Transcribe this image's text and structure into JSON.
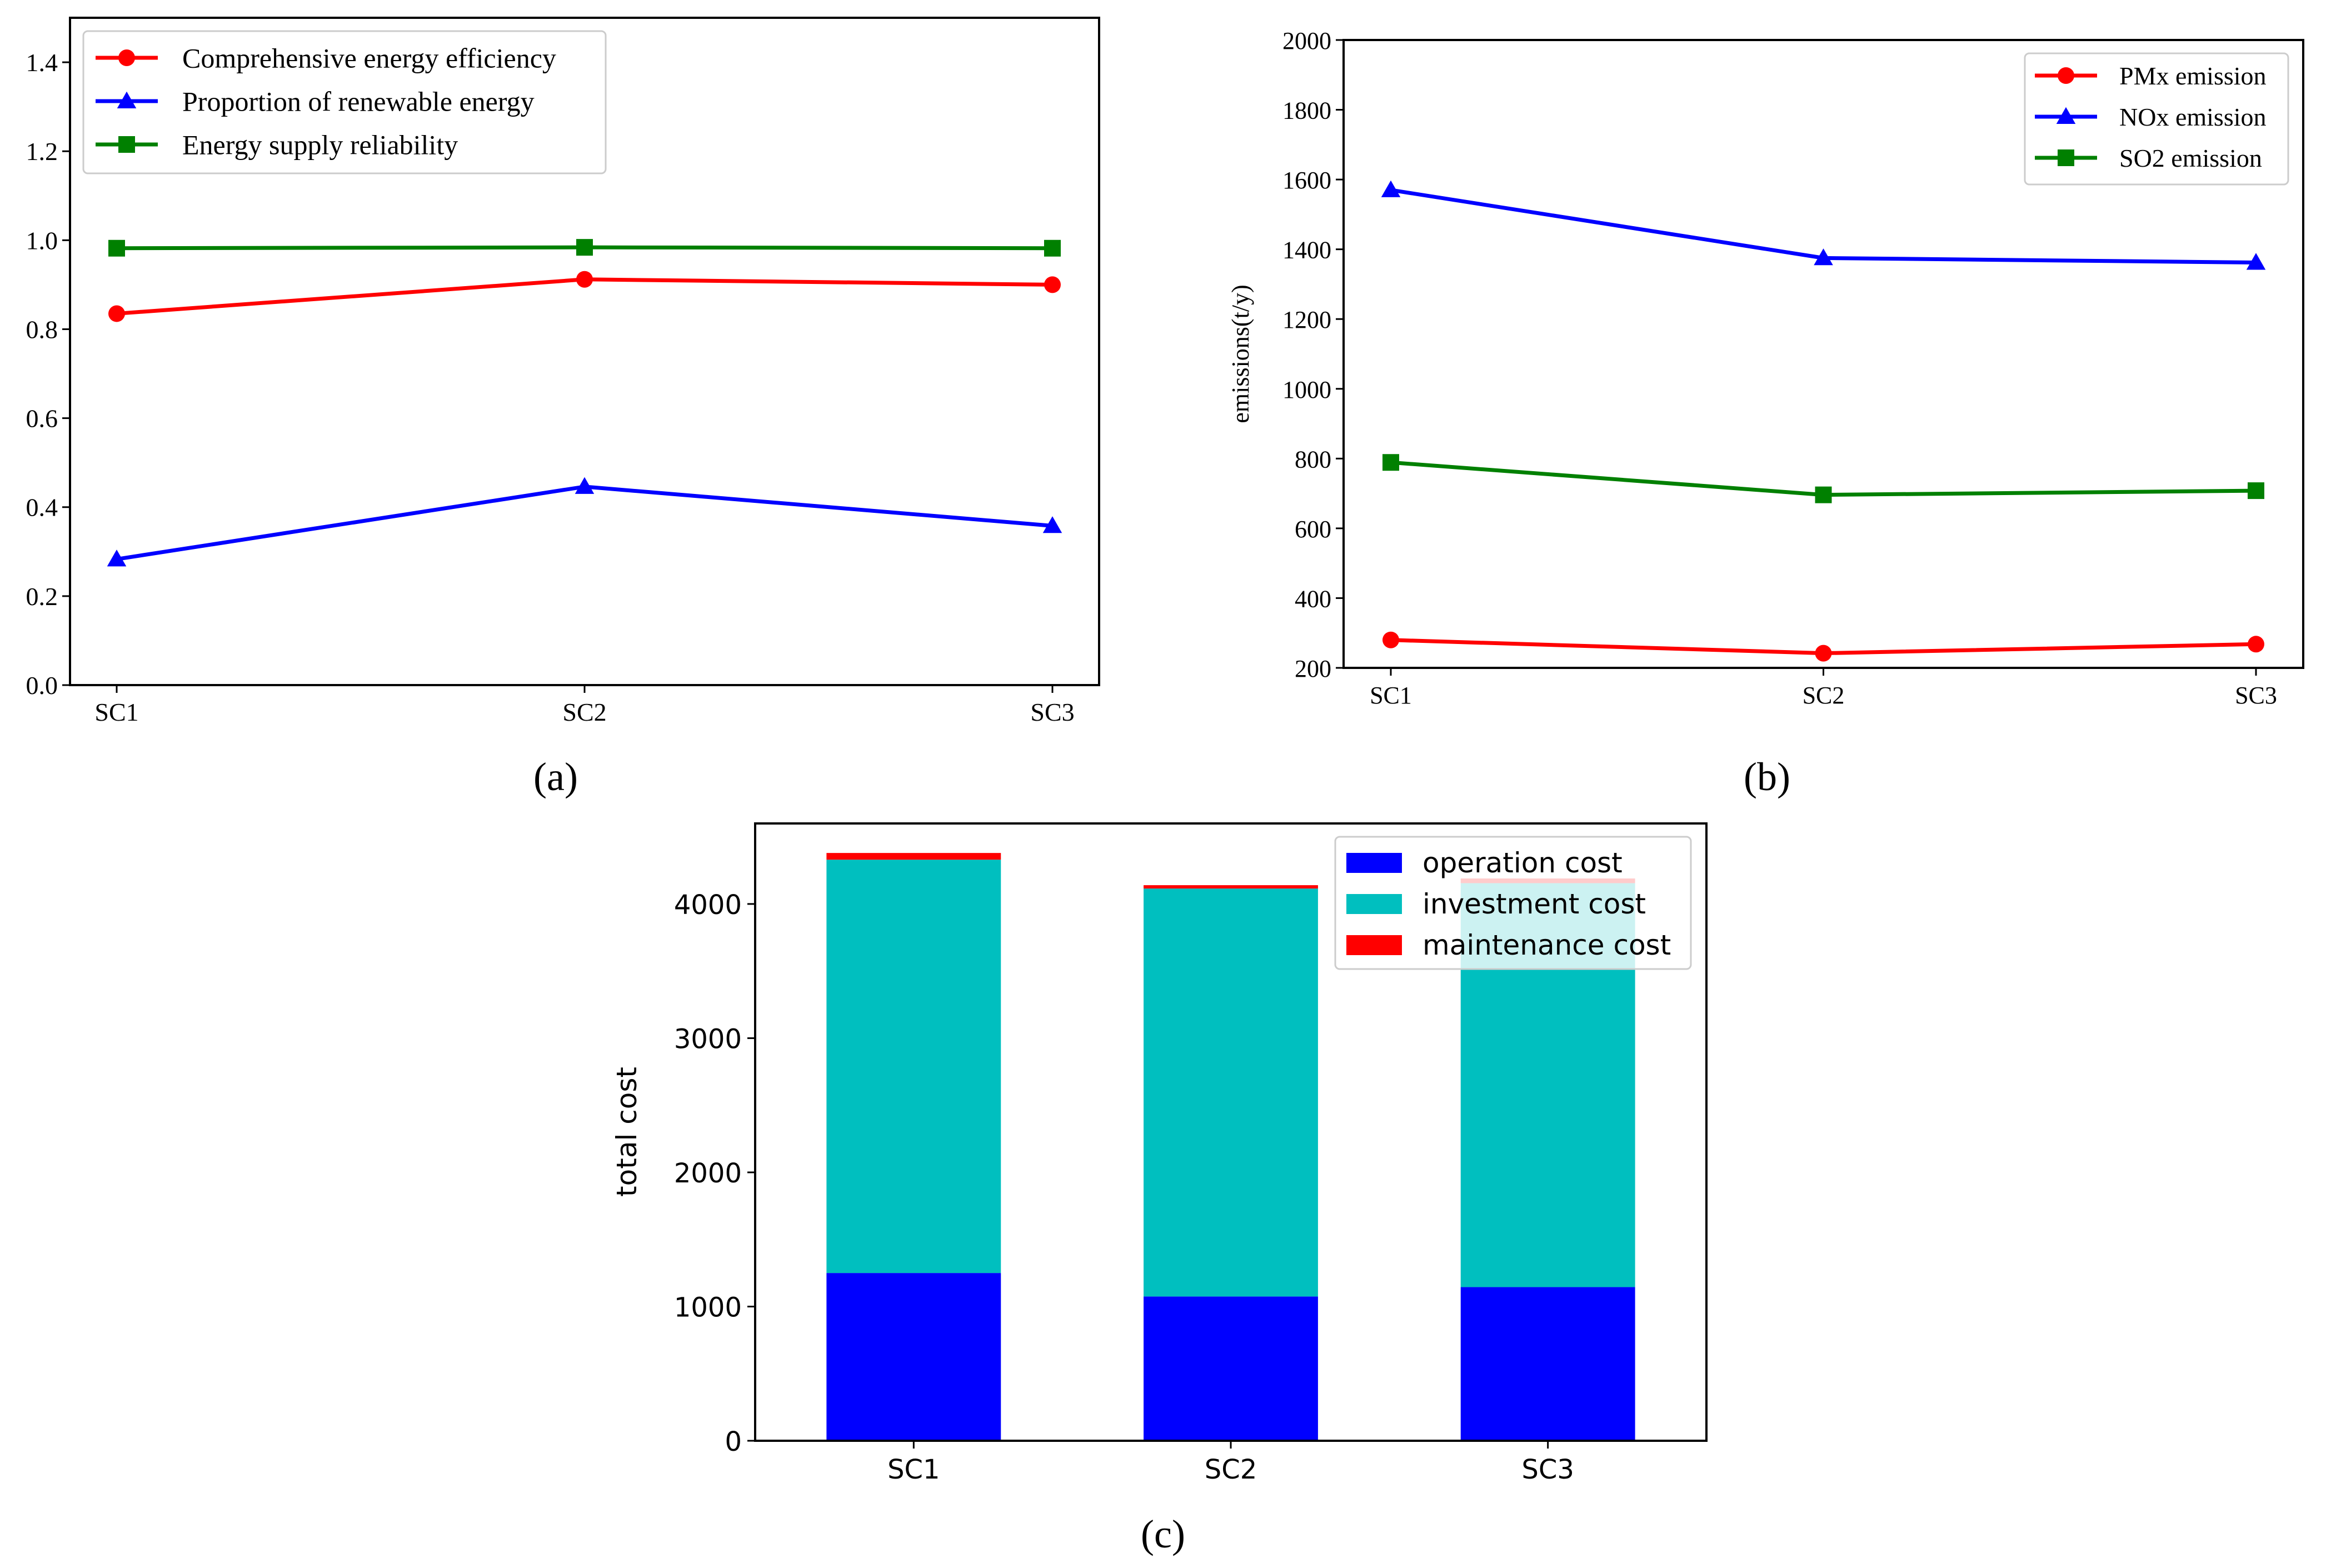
{
  "chart_data": [
    {
      "panel_label": "(a)",
      "type": "line",
      "x": [
        "SC1",
        "SC2",
        "SC3"
      ],
      "ylim": [
        0.0,
        1.5
      ],
      "yticks": [
        "0.0",
        "0.2",
        "0.4",
        "0.6",
        "0.8",
        "1.0",
        "1.2",
        "1.4"
      ],
      "xlabel": "",
      "ylabel": "",
      "grid": false,
      "legend_position": "top-left",
      "series": [
        {
          "name": "Comprehensive energy efficiency",
          "color": "#ff0000",
          "marker": "circle",
          "values": [
            0.835,
            0.912,
            0.9
          ]
        },
        {
          "name": "Proportion of renewable energy",
          "color": "#0000ff",
          "marker": "triangle",
          "values": [
            0.283,
            0.446,
            0.358
          ]
        },
        {
          "name": "Energy supply reliability",
          "color": "#008000",
          "marker": "square",
          "values": [
            0.982,
            0.984,
            0.982
          ]
        }
      ]
    },
    {
      "panel_label": "(b)",
      "type": "line",
      "x": [
        "SC1",
        "SC2",
        "SC3"
      ],
      "ylim": [
        200,
        2000
      ],
      "yticks": [
        "200",
        "400",
        "600",
        "800",
        "1000",
        "1200",
        "1400",
        "1600",
        "1800",
        "2000"
      ],
      "xlabel": "",
      "ylabel": "emissions(t/y)",
      "grid": false,
      "legend_position": "top-right",
      "series": [
        {
          "name": "PMx emission",
          "color": "#ff0000",
          "marker": "circle",
          "values": [
            280,
            242,
            268
          ]
        },
        {
          "name": "NOx emission",
          "color": "#0000ff",
          "marker": "triangle",
          "values": [
            1570,
            1375,
            1362
          ]
        },
        {
          "name": "SO2 emission",
          "color": "#008000",
          "marker": "square",
          "values": [
            789,
            696,
            708
          ]
        }
      ]
    },
    {
      "panel_label": "(c)",
      "type": "bar",
      "stacked": true,
      "categories": [
        "SC1",
        "SC2",
        "SC3"
      ],
      "ylim": [
        0,
        4600
      ],
      "yticks": [
        "0",
        "1000",
        "2000",
        "3000",
        "4000"
      ],
      "xlabel": "",
      "ylabel": "total cost",
      "grid": false,
      "legend_position": "top-right",
      "series": [
        {
          "name": "operation cost",
          "color": "#0000ff",
          "values": [
            1250,
            1075,
            1145
          ]
        },
        {
          "name": "investment cost",
          "color": "#00bfbf",
          "values": [
            3080,
            3040,
            3010
          ]
        },
        {
          "name": "maintenance cost",
          "color": "#ff0000",
          "values": [
            50,
            25,
            35
          ]
        }
      ]
    }
  ]
}
